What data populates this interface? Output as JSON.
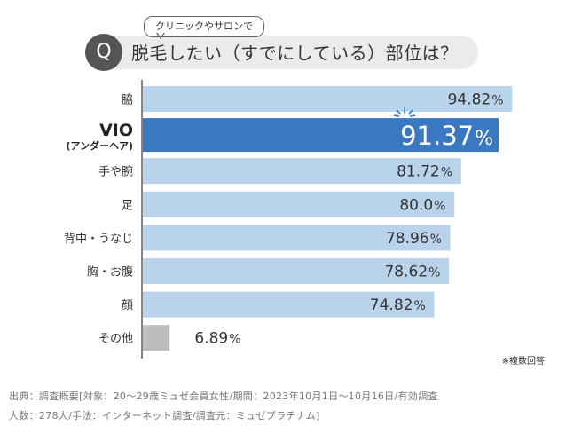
{
  "question": {
    "badge": "Q",
    "bubble": "クリニックやサロンで",
    "text": "脱毛したい（すでにしている）部位は？"
  },
  "chart_data": {
    "type": "bar",
    "orientation": "horizontal",
    "categories": [
      "脇",
      "VIO",
      "手や腕",
      "足",
      "背中・うなじ",
      "胸・お腹",
      "顔",
      "その他"
    ],
    "category_sublabels": {
      "VIO": "(アンダーヘア)"
    },
    "values": [
      94.82,
      91.37,
      81.72,
      80.0,
      78.96,
      78.62,
      74.82,
      6.89
    ],
    "value_labels": [
      "94.82",
      "91.37",
      "81.72",
      "80.0",
      "78.96",
      "78.62",
      "74.82",
      "6.89"
    ],
    "unit": "%",
    "highlight": "VIO",
    "colors": {
      "default": "#b8d3ea",
      "highlight": "#3a78c2",
      "other": "#bdbdbd"
    },
    "xlim": [
      0,
      100
    ],
    "grid": false
  },
  "note": "※複数回答",
  "footer": {
    "line1": "出典：調査概要[対象：20〜29歳ミュゼ会員女性/期間：2023年10月1日〜10月16日/有効調査",
    "line2": "人数：278人/手法：インターネット調査/調査元：ミュゼプラチナム]"
  }
}
